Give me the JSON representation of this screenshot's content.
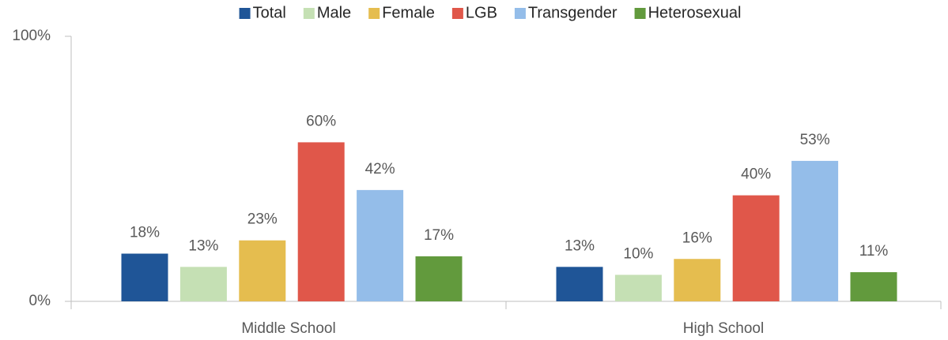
{
  "chart_data": {
    "type": "bar",
    "categories": [
      "Middle School",
      "High School"
    ],
    "series": [
      {
        "name": "Total",
        "color": "#1f5597",
        "values": [
          18,
          13
        ],
        "value_labels": [
          "18%",
          "13%"
        ]
      },
      {
        "name": "Male",
        "color": "#c5e0b4",
        "values": [
          13,
          10
        ],
        "value_labels": [
          "13%",
          "10%"
        ]
      },
      {
        "name": "Female",
        "color": "#e5bd4f",
        "values": [
          23,
          16
        ],
        "value_labels": [
          "23%",
          "16%"
        ]
      },
      {
        "name": "LGB",
        "color": "#e0574a",
        "values": [
          60,
          40
        ],
        "value_labels": [
          "60%",
          "40%"
        ]
      },
      {
        "name": "Transgender",
        "color": "#94bde9",
        "values": [
          42,
          53
        ],
        "value_labels": [
          "42%",
          "53%"
        ]
      },
      {
        "name": "Heterosexual",
        "color": "#629a3d",
        "values": [
          17,
          11
        ],
        "value_labels": [
          "17%",
          "11%"
        ]
      }
    ],
    "ylim": [
      0,
      100
    ],
    "yticks": [
      {
        "value": 0,
        "label": "0%"
      },
      {
        "value": 100,
        "label": "100%"
      }
    ],
    "legend": "top"
  }
}
